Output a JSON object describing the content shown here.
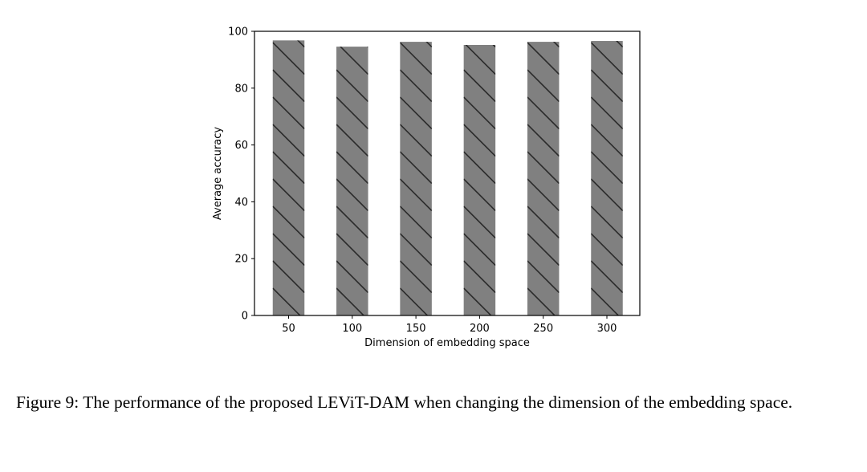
{
  "chart_data": {
    "type": "bar",
    "categories": [
      "50",
      "100",
      "150",
      "200",
      "250",
      "300"
    ],
    "values": [
      96.8,
      94.6,
      96.3,
      95.2,
      96.3,
      96.6
    ],
    "xlabel": "Dimension of embedding space",
    "ylabel": "Average accuracy",
    "ylim": [
      0,
      100
    ],
    "yticks": [
      "0",
      "20",
      "40",
      "60",
      "80",
      "100"
    ],
    "grid": false,
    "bar_color": "#808080",
    "hatch": "backslash diagonal",
    "hatch_color": "#2b2b2b"
  },
  "caption": {
    "text": "Figure 9: The performance of the proposed LEViT-DAM when changing the dimension of the embedding space."
  }
}
